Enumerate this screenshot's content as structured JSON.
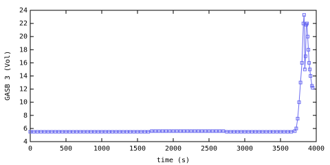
{
  "chart_data": {
    "type": "line",
    "xlabel": "time (s)",
    "ylabel": "GASB 3 (Vol)",
    "xlim": [
      0,
      4000
    ],
    "ylim": [
      4,
      24
    ],
    "xticks": [
      0,
      500,
      1000,
      1500,
      2000,
      2500,
      3000,
      3500,
      4000
    ],
    "yticks": [
      4,
      6,
      8,
      10,
      12,
      14,
      16,
      18,
      20,
      22,
      24
    ],
    "series": [
      {
        "color": "#6a6af0",
        "x": [
          0,
          50,
          100,
          150,
          200,
          250,
          300,
          350,
          400,
          450,
          500,
          550,
          600,
          650,
          700,
          750,
          800,
          850,
          900,
          950,
          1000,
          1050,
          1100,
          1150,
          1200,
          1250,
          1300,
          1350,
          1400,
          1450,
          1500,
          1550,
          1600,
          1650,
          1700,
          1750,
          1800,
          1850,
          1900,
          1950,
          2000,
          2050,
          2100,
          2150,
          2200,
          2250,
          2300,
          2350,
          2400,
          2450,
          2500,
          2550,
          2600,
          2650,
          2700,
          2750,
          2800,
          2850,
          2900,
          2950,
          3000,
          3050,
          3100,
          3150,
          3200,
          3250,
          3300,
          3350,
          3400,
          3450,
          3500,
          3550,
          3600,
          3650,
          3700,
          3720,
          3740,
          3760,
          3780,
          3800,
          3820,
          3830,
          3840,
          3850,
          3860,
          3870,
          3880,
          3890,
          3900,
          3910,
          3920,
          3940,
          3950
        ],
        "values": [
          5.5,
          5.5,
          5.5,
          5.5,
          5.5,
          5.5,
          5.5,
          5.5,
          5.5,
          5.5,
          5.5,
          5.5,
          5.5,
          5.5,
          5.5,
          5.5,
          5.5,
          5.5,
          5.5,
          5.5,
          5.5,
          5.5,
          5.5,
          5.5,
          5.5,
          5.5,
          5.5,
          5.5,
          5.5,
          5.5,
          5.5,
          5.5,
          5.5,
          5.5,
          5.6,
          5.6,
          5.6,
          5.6,
          5.6,
          5.6,
          5.6,
          5.6,
          5.6,
          5.6,
          5.6,
          5.6,
          5.6,
          5.6,
          5.6,
          5.6,
          5.6,
          5.6,
          5.6,
          5.6,
          5.6,
          5.5,
          5.5,
          5.5,
          5.5,
          5.5,
          5.5,
          5.5,
          5.5,
          5.5,
          5.5,
          5.5,
          5.5,
          5.5,
          5.5,
          5.5,
          5.5,
          5.5,
          5.5,
          5.5,
          5.6,
          6,
          7.5,
          10,
          13,
          16,
          22,
          23.3,
          15,
          17,
          21.8,
          22,
          20,
          18,
          16,
          15,
          14,
          12.5,
          12.2
        ]
      }
    ]
  }
}
